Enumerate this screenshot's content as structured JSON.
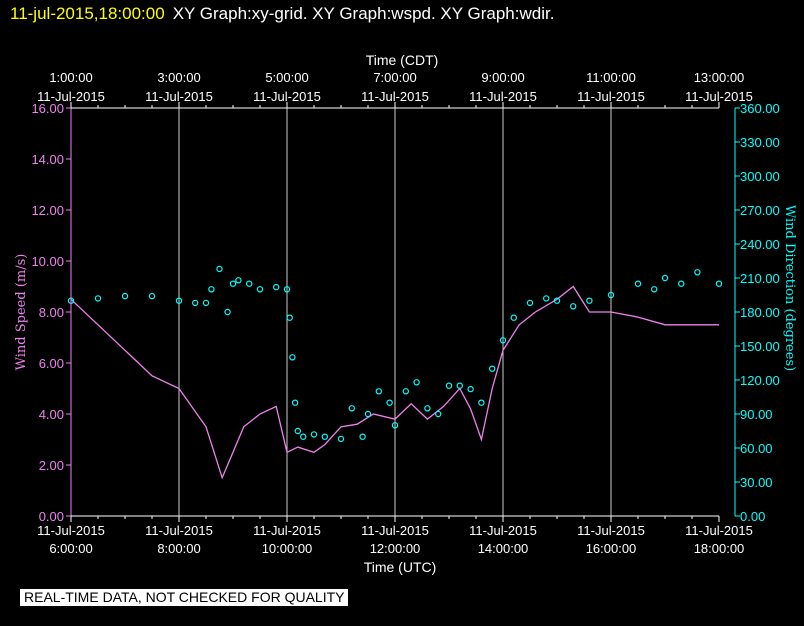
{
  "header": {
    "timestamp": "11-jul-2015,18:00:00",
    "graphs": "XY Graph:xy-grid.  XY Graph:wspd.  XY Graph:wdir."
  },
  "notice": "REAL-TIME DATA, NOT CHECKED FOR QUALITY",
  "colors": {
    "speed": "#ee82ee",
    "direction": "#00ffff",
    "grid": "#ffffff",
    "background": "#000000",
    "header_time": "#ffff00"
  },
  "chart_data": {
    "type": "line",
    "x_top_title": "Time (CDT)",
    "x_bottom_title": "Time (UTC)",
    "y_left_label": "Wind Speed (m/s)",
    "y_right_label": "Wind Direction (degrees)",
    "x_range_utc_hours": [
      6,
      18
    ],
    "x_top_ticks": [
      {
        "h": 6,
        "time": "1:00:00",
        "date": "11-Jul-2015"
      },
      {
        "h": 8,
        "time": "3:00:00",
        "date": "11-Jul-2015"
      },
      {
        "h": 10,
        "time": "5:00:00",
        "date": "11-Jul-2015"
      },
      {
        "h": 12,
        "time": "7:00:00",
        "date": "11-Jul-2015"
      },
      {
        "h": 14,
        "time": "9:00:00",
        "date": "11-Jul-2015"
      },
      {
        "h": 16,
        "time": "11:00:00",
        "date": "11-Jul-2015"
      },
      {
        "h": 18,
        "time": "13:00:00",
        "date": "11-Jul-2015"
      }
    ],
    "x_bottom_ticks": [
      {
        "h": 6,
        "date": "11-Jul-2015",
        "time": "6:00:00"
      },
      {
        "h": 8,
        "date": "11-Jul-2015",
        "time": "8:00:00"
      },
      {
        "h": 10,
        "date": "11-Jul-2015",
        "time": "10:00:00"
      },
      {
        "h": 12,
        "date": "11-Jul-2015",
        "time": "12:00:00"
      },
      {
        "h": 14,
        "date": "11-Jul-2015",
        "time": "14:00:00"
      },
      {
        "h": 16,
        "date": "11-Jul-2015",
        "time": "16:00:00"
      },
      {
        "h": 18,
        "date": "11-Jul-2015",
        "time": "18:00:00"
      }
    ],
    "y_left": {
      "min": 0,
      "max": 16,
      "ticks": [
        "0.00",
        "2.00",
        "4.00",
        "6.00",
        "8.00",
        "10.00",
        "12.00",
        "14.00",
        "16.00"
      ]
    },
    "y_right": {
      "min": 0,
      "max": 360,
      "ticks": [
        "0.00",
        "30.00",
        "60.00",
        "90.00",
        "120.00",
        "150.00",
        "180.00",
        "210.00",
        "240.00",
        "270.00",
        "300.00",
        "330.00",
        "360.00"
      ]
    },
    "grid": "vertical lines at major x ticks",
    "series": [
      {
        "name": "Wind Speed",
        "axis": "left",
        "style": "line",
        "x": [
          6.0,
          6.5,
          7.0,
          7.5,
          8.0,
          8.5,
          8.8,
          9.0,
          9.2,
          9.5,
          9.8,
          10.0,
          10.2,
          10.5,
          10.7,
          11.0,
          11.3,
          11.6,
          12.0,
          12.3,
          12.6,
          12.9,
          13.2,
          13.4,
          13.6,
          13.8,
          14.0,
          14.3,
          14.6,
          15.0,
          15.3,
          15.6,
          16.0,
          16.5,
          17.0,
          17.5,
          18.0
        ],
        "y": [
          8.5,
          7.5,
          6.5,
          5.5,
          5.0,
          3.5,
          1.5,
          2.5,
          3.5,
          4.0,
          4.3,
          2.5,
          2.7,
          2.5,
          2.8,
          3.5,
          3.6,
          4.0,
          3.8,
          4.4,
          3.8,
          4.3,
          5.0,
          4.2,
          3.0,
          5.0,
          6.5,
          7.5,
          8.0,
          8.5,
          9.0,
          8.0,
          8.0,
          7.8,
          7.5,
          7.5,
          7.5
        ]
      },
      {
        "name": "Wind Direction",
        "axis": "right",
        "style": "circles",
        "x": [
          6.0,
          6.5,
          7.0,
          7.5,
          8.0,
          8.3,
          8.5,
          8.6,
          8.75,
          8.9,
          9.0,
          9.1,
          9.3,
          9.5,
          9.8,
          10.0,
          10.05,
          10.1,
          10.15,
          10.2,
          10.3,
          10.5,
          10.7,
          11.0,
          11.2,
          11.4,
          11.5,
          11.7,
          11.9,
          12.0,
          12.2,
          12.4,
          12.6,
          12.8,
          13.0,
          13.2,
          13.4,
          13.6,
          13.8,
          14.0,
          14.2,
          14.5,
          14.8,
          15.0,
          15.3,
          15.6,
          16.0,
          16.5,
          16.8,
          17.0,
          17.3,
          17.6,
          18.0
        ],
        "y": [
          190,
          192,
          194,
          194,
          190,
          188,
          188,
          200,
          218,
          180,
          205,
          208,
          205,
          200,
          202,
          200,
          175,
          140,
          100,
          75,
          70,
          72,
          70,
          68,
          95,
          70,
          90,
          110,
          100,
          80,
          110,
          118,
          95,
          90,
          115,
          115,
          112,
          100,
          130,
          155,
          175,
          188,
          192,
          190,
          185,
          190,
          195,
          205,
          200,
          210,
          205,
          215,
          205
        ]
      }
    ]
  }
}
